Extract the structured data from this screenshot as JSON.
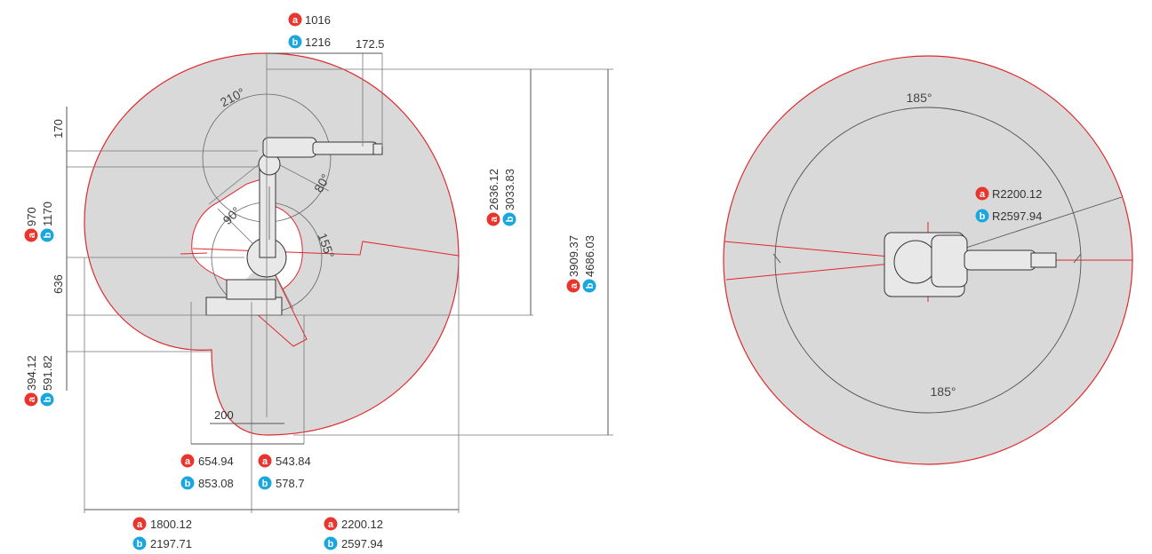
{
  "badges": {
    "a": "a",
    "b": "b"
  },
  "colors": {
    "a": "#e8352e",
    "b": "#1aa7e0",
    "envelope": "#d9d9da",
    "envelope_edge": "#e0282c"
  },
  "side_view": {
    "top_dims": {
      "a": "1016",
      "b": "1216",
      "offset": "172.5"
    },
    "angles": {
      "j1": "210°",
      "j2": "80°",
      "j3": "90°",
      "j4": "155°"
    },
    "left_dims": {
      "top": "170",
      "upper": {
        "a": "970",
        "b": "1170"
      },
      "middle": "636",
      "lower": {
        "a": "394.12",
        "b": "591.82"
      }
    },
    "right_dims": {
      "inner": {
        "a": "2636.12",
        "b": "3033.83"
      },
      "outer": {
        "a": "3909.37",
        "b": "4686.03"
      }
    },
    "bottom_dims": {
      "base_offset": "200",
      "left_inner": {
        "a": "654.94",
        "b": "853.08"
      },
      "right_inner": {
        "a": "543.84",
        "b": "578.7"
      },
      "left_outer": {
        "a": "1800.12",
        "b": "2197.71"
      },
      "right_outer": {
        "a": "2200.12",
        "b": "2597.94"
      }
    }
  },
  "top_view": {
    "angle_top": "185°",
    "angle_bottom": "185°",
    "radius": {
      "a": "R2200.12",
      "b": "R2597.94"
    }
  }
}
